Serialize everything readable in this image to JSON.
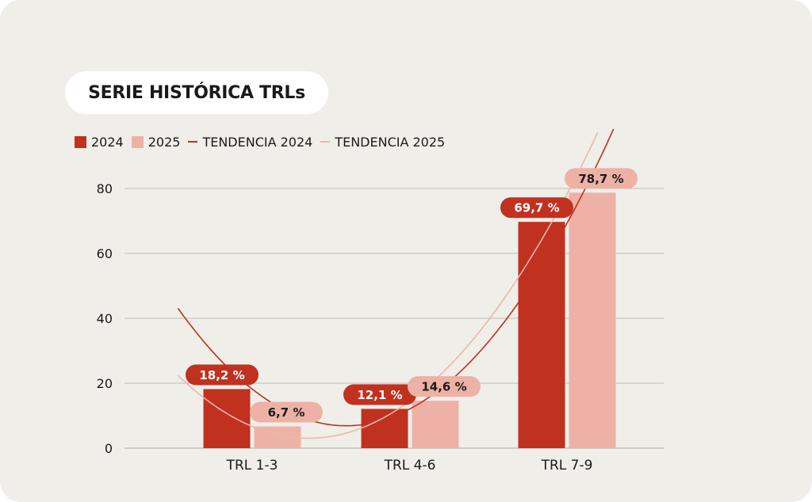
{
  "title": "SERIE HISTÓRICA TRLs",
  "legend": {
    "s2024": "2024",
    "s2025": "2025",
    "t2024": "TENDENCIA 2024",
    "t2025": "TENDENCIA 2025"
  },
  "colors": {
    "s2024": "#c0311f",
    "s2025": "#edb2a5",
    "t2024": "#c0311f",
    "t2025": "#eeb6a8",
    "grid": "#bdbdb8",
    "background": "#efeee9"
  },
  "chart_data": {
    "type": "bar",
    "title": "SERIE HISTÓRICA TRLs",
    "categories": [
      "TRL 1-3",
      "TRL 4-6",
      "TRL 7-9"
    ],
    "series": [
      {
        "name": "2024",
        "values": [
          18.2,
          12.1,
          69.7
        ],
        "labels": [
          "18,2 %",
          "12,1 %",
          "69,7 %"
        ]
      },
      {
        "name": "2025",
        "values": [
          6.7,
          14.6,
          78.7
        ],
        "labels": [
          "6,7 %",
          "14,6 %",
          "78,7 %"
        ]
      }
    ],
    "trendlines": [
      {
        "name": "TENDENCIA 2024",
        "series": "2024",
        "kind": "polynomial"
      },
      {
        "name": "TENDENCIA 2025",
        "series": "2025",
        "kind": "polynomial"
      }
    ],
    "yticks": [
      "0",
      "20",
      "40",
      "60",
      "80"
    ],
    "ylim": [
      0,
      80
    ],
    "grid": true,
    "legend_position": "top-left"
  }
}
